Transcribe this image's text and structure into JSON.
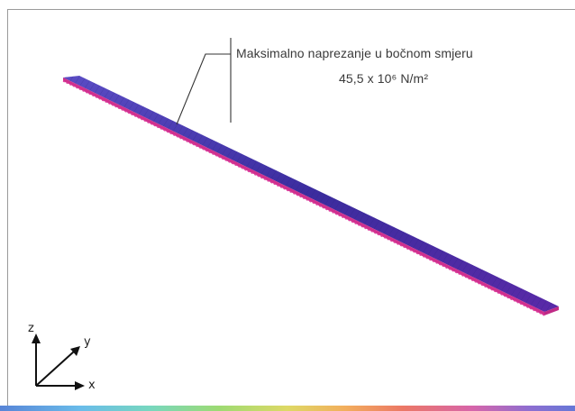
{
  "annotation": {
    "line1": "Maksimalno naprezanje u bočnom smjeru",
    "line2": "45,5 x 10⁶ N/m²"
  },
  "axes": {
    "z_label": "z",
    "y_label": "y",
    "x_label": "x"
  },
  "colors": {
    "beam_top": "#3b2a9c",
    "beam_mid": "#4b3fb0",
    "beam_edge": "#d02a8a",
    "leader_line": "#333333"
  }
}
